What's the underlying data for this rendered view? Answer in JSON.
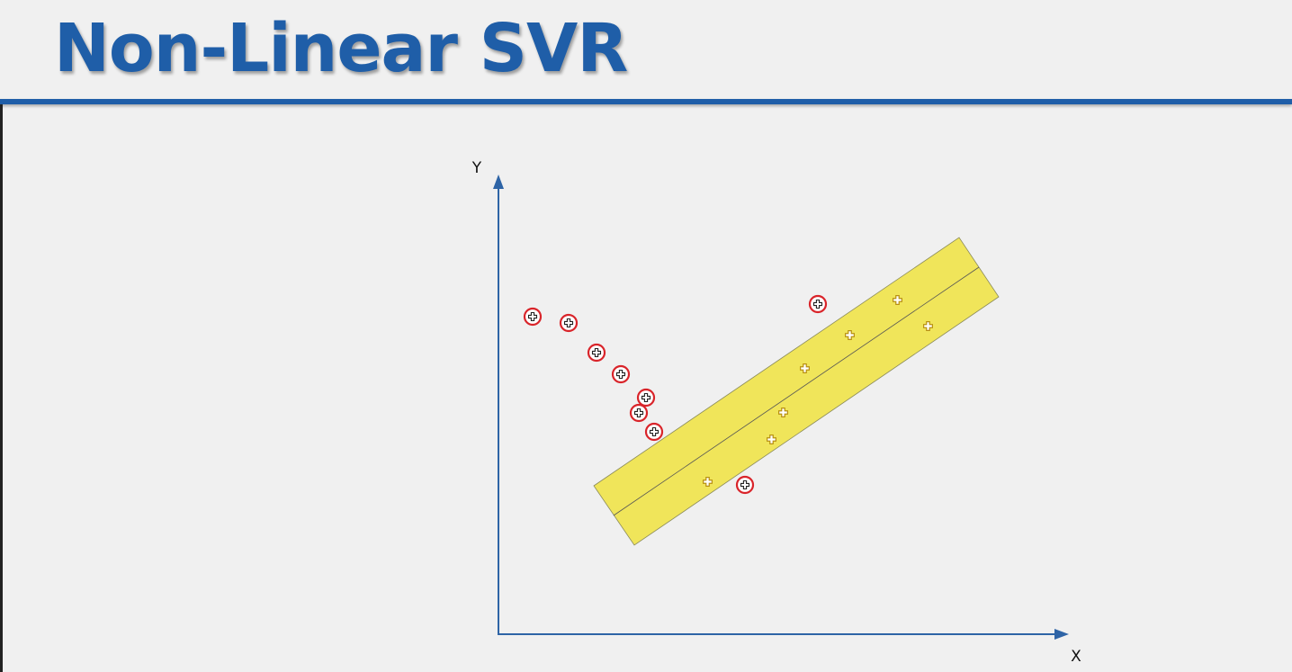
{
  "slide": {
    "title": "Non-Linear SVR"
  },
  "diagram": {
    "y_axis_label": "Y",
    "x_axis_label": "X",
    "colors": {
      "axis": "#2e64a6",
      "tube_fill": "#f0e55a",
      "tube_edge": "#7a7a50",
      "support_vector_ring": "#d9242a",
      "inside_point": "#c8a020"
    }
  }
}
